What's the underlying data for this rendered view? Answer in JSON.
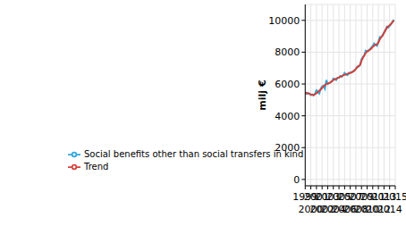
{
  "chart_data": {
    "type": "line",
    "y_label": "milj €",
    "x": [
      1999,
      1999.25,
      1999.5,
      1999.75,
      2000,
      2000.25,
      2000.5,
      2000.75,
      2001,
      2001.25,
      2001.5,
      2001.75,
      2002,
      2002.25,
      2002.5,
      2002.75,
      2003,
      2003.25,
      2003.5,
      2003.75,
      2004,
      2004.25,
      2004.5,
      2004.75,
      2005,
      2005.25,
      2005.5,
      2005.75,
      2006,
      2006.25,
      2006.5,
      2006.75,
      2007,
      2007.25,
      2007.5,
      2007.75,
      2008,
      2008.25,
      2008.5,
      2008.75,
      2009,
      2009.25,
      2009.5,
      2009.75,
      2010,
      2010.25,
      2010.5,
      2010.75,
      2011,
      2011.25,
      2011.5,
      2011.75,
      2012,
      2012.25,
      2012.5,
      2012.75,
      2013,
      2013.25,
      2013.5,
      2013.75,
      2014,
      2014.25,
      2014.5,
      2014.75
    ],
    "series": [
      {
        "name": "Social benefits other than social transfers in kind",
        "color": "#2fa9dc",
        "values": [
          5500,
          5380,
          5450,
          5400,
          5300,
          5350,
          5280,
          5400,
          5600,
          5500,
          5400,
          5700,
          5850,
          5900,
          5700,
          6250,
          6000,
          6050,
          6100,
          6150,
          6350,
          6300,
          6250,
          6400,
          6400,
          6500,
          6450,
          6550,
          6700,
          6600,
          6550,
          6700,
          6700,
          6750,
          6800,
          6850,
          6950,
          7100,
          7100,
          7200,
          7550,
          7700,
          7800,
          8100,
          8050,
          8100,
          8200,
          8300,
          8400,
          8550,
          8450,
          8400,
          8650,
          8950,
          8950,
          9050,
          9250,
          9350,
          9600,
          9550,
          9650,
          9750,
          9900,
          10050
        ]
      },
      {
        "name": "Trend",
        "color": "#d6403a",
        "values": [
          5450,
          5430,
          5400,
          5380,
          5350,
          5320,
          5320,
          5360,
          5420,
          5500,
          5580,
          5650,
          5750,
          5850,
          5930,
          5990,
          6030,
          6060,
          6100,
          6180,
          6250,
          6300,
          6330,
          6370,
          6420,
          6460,
          6500,
          6540,
          6580,
          6610,
          6640,
          6660,
          6690,
          6720,
          6780,
          6850,
          6950,
          7050,
          7120,
          7200,
          7450,
          7650,
          7800,
          7950,
          8050,
          8100,
          8150,
          8230,
          8330,
          8420,
          8470,
          8500,
          8600,
          8800,
          8950,
          9050,
          9200,
          9380,
          9530,
          9620,
          9700,
          9780,
          9880,
          10000
        ]
      }
    ],
    "xlim": [
      1999,
      2015
    ],
    "xticks": [
      1999,
      2000,
      2001,
      2002,
      2003,
      2004,
      2005,
      2006,
      2007,
      2008,
      2009,
      2010,
      2011,
      2012,
      2013,
      2014,
      2015
    ],
    "ylim": [
      -400,
      11000
    ],
    "yticks": [
      0,
      2000,
      4000,
      6000,
      8000,
      10000
    ],
    "grid": true,
    "legend": "lower left"
  }
}
